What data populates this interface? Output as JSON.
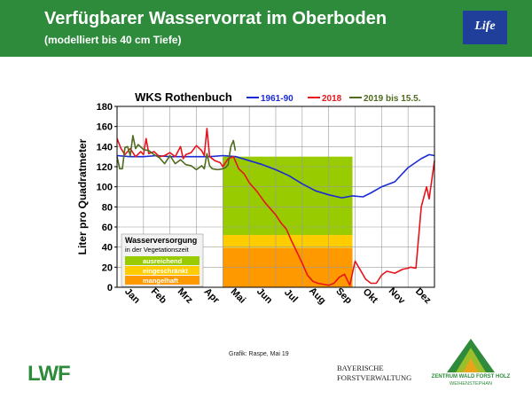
{
  "header": {
    "title": "Verfügbarer Wasservorrat im Oberboden",
    "subtitle": "(modelliert bis 40 cm Tiefe)",
    "eu_logo_text": "Life"
  },
  "footer": {
    "credit": "Grafik: Raspe, Mai 19",
    "lwf_logo": "LWF",
    "bf_logo_line1": "BAYERISCHE",
    "bf_logo_line2": "FORSTVERWALTUNG",
    "zw_line1": "ZENTRUM WALD FORST HOLZ",
    "zw_line2": "WEIHENSTEPHAN"
  },
  "colors": {
    "header_bg": "#2e8b3c",
    "series_1961": "#1a2bd6",
    "series_2018": "#e8131b",
    "series_2019": "#4f6b1e",
    "band_ausreichend": "#99cc00",
    "band_eingeschraenkt": "#ffcc00",
    "band_mangelhaft": "#ff9900"
  },
  "chart_data": {
    "type": "line",
    "title": "WKS Rothenbuch",
    "xlabel": "",
    "ylabel": "Liter pro Quadratmeter",
    "ylim": [
      0,
      180
    ],
    "yticks": [
      0,
      20,
      40,
      60,
      80,
      100,
      120,
      140,
      160,
      180
    ],
    "xlim": [
      0,
      12
    ],
    "categories": [
      "Jan",
      "Feb",
      "Mrz",
      "Apr",
      "Mai",
      "Jun",
      "Jul",
      "Aug",
      "Sep",
      "Okt",
      "Nov",
      "Dez"
    ],
    "grid": true,
    "legend": "top",
    "bands": {
      "x_range": [
        4.0,
        8.9
      ],
      "levels": [
        {
          "label": "ausreichend",
          "from": 52,
          "to": 130
        },
        {
          "label": "eingeschränkt",
          "from": 39,
          "to": 52
        },
        {
          "label": "mangelhaft",
          "from": 0,
          "to": 39
        }
      ]
    },
    "band_legend": {
      "title": "Wasserversorgung",
      "subtitle": "in der Vegetationszeit",
      "items": [
        "ausreichend",
        "eingeschränkt",
        "mangelhaft"
      ]
    },
    "series": [
      {
        "name": "1961-90",
        "x": [
          0,
          0.5,
          1,
          1.5,
          2,
          2.5,
          3,
          3.5,
          4,
          4.5,
          5,
          5.5,
          6,
          6.5,
          7,
          7.5,
          8,
          8.5,
          8.9,
          9.3,
          9.6,
          10,
          10.5,
          11,
          11.5,
          11.8,
          12
        ],
        "y": [
          131,
          130,
          130,
          131,
          130,
          130,
          130,
          130,
          131,
          130,
          126,
          122,
          117,
          111,
          103,
          96,
          92,
          89,
          91,
          90,
          94,
          100,
          105,
          119,
          128,
          132,
          131
        ]
      },
      {
        "name": "2018",
        "x": [
          0,
          0.15,
          0.3,
          0.5,
          0.7,
          0.9,
          1,
          1.1,
          1.2,
          1.4,
          1.6,
          1.8,
          2,
          2.2,
          2.4,
          2.5,
          2.6,
          2.8,
          3,
          3.2,
          3.3,
          3.4,
          3.5,
          3.7,
          3.9,
          4,
          4.2,
          4.4,
          4.6,
          4.8,
          5,
          5.3,
          5.6,
          6,
          6.2,
          6.4,
          6.6,
          6.8,
          7,
          7.2,
          7.4,
          7.6,
          7.8,
          8,
          8.2,
          8.4,
          8.6,
          8.8,
          9,
          9.2,
          9.4,
          9.6,
          9.8,
          10,
          10.2,
          10.5,
          10.8,
          11,
          11.1,
          11.3,
          11.5,
          11.7,
          11.8,
          12
        ],
        "y": [
          148,
          138,
          132,
          138,
          130,
          135,
          132,
          148,
          133,
          135,
          130,
          131,
          134,
          130,
          140,
          128,
          132,
          134,
          141,
          136,
          131,
          158,
          130,
          126,
          124,
          120,
          128,
          130,
          118,
          113,
          104,
          95,
          84,
          72,
          64,
          58,
          46,
          35,
          24,
          12,
          6,
          4,
          3,
          2,
          4,
          10,
          13,
          2,
          26,
          17,
          8,
          4,
          4,
          12,
          16,
          14,
          18,
          19,
          20,
          19,
          80,
          100,
          88,
          126
        ]
      },
      {
        "name": "2019 bis 15.5.",
        "x": [
          0,
          0.1,
          0.2,
          0.3,
          0.4,
          0.5,
          0.6,
          0.7,
          0.8,
          1,
          1.2,
          1.4,
          1.6,
          1.8,
          2,
          2.2,
          2.4,
          2.6,
          2.8,
          3,
          3.2,
          3.3,
          3.4,
          3.5,
          3.6,
          3.8,
          4.0,
          4.1,
          4.2,
          4.3,
          4.4,
          4.47
        ],
        "y": [
          130,
          118,
          118,
          139,
          140,
          131,
          151,
          138,
          142,
          137,
          136,
          132,
          129,
          123,
          131,
          123,
          127,
          122,
          121,
          117,
          121,
          118,
          133,
          121,
          118,
          117,
          118,
          119,
          122,
          140,
          146,
          136
        ]
      }
    ]
  }
}
